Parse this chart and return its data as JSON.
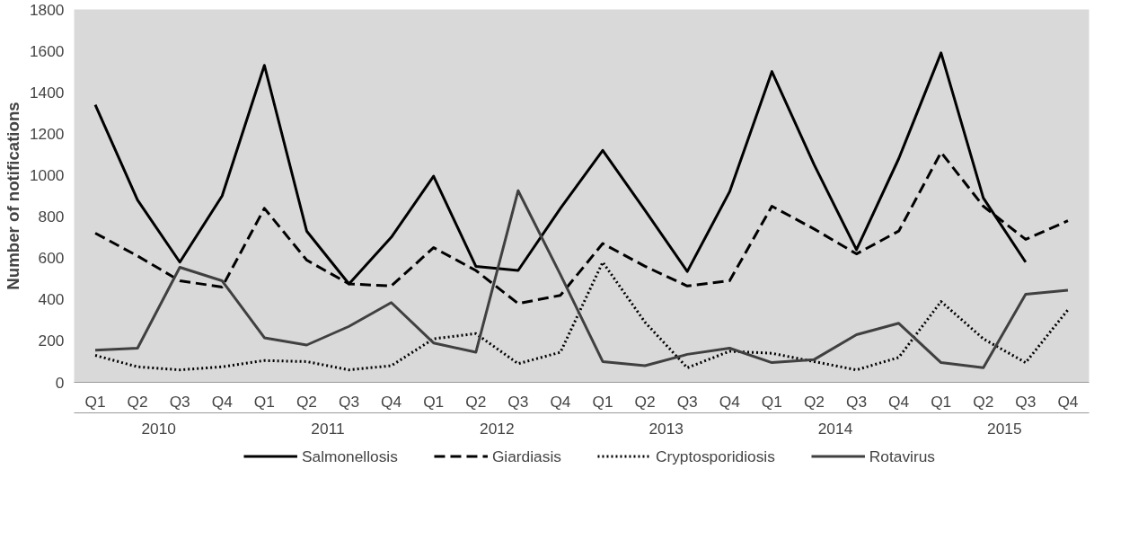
{
  "chart_data": {
    "type": "line",
    "ylabel": "Number of notifications",
    "categories": [
      "Q1",
      "Q2",
      "Q3",
      "Q4",
      "Q1",
      "Q2",
      "Q3",
      "Q4",
      "Q1",
      "Q2",
      "Q3",
      "Q4",
      "Q1",
      "Q2",
      "Q3",
      "Q4",
      "Q1",
      "Q2",
      "Q3",
      "Q4",
      "Q1",
      "Q2",
      "Q3",
      "Q4"
    ],
    "annotations": [
      "2010",
      "2011",
      "2012",
      "2013",
      "2014",
      "2015"
    ],
    "series": [
      {
        "name": "Salmonellosis",
        "color": "#000000",
        "line_style": "solid",
        "values": [
          1340,
          880,
          580,
          900,
          1530,
          730,
          475,
          700,
          995,
          560,
          540,
          840,
          1120,
          830,
          535,
          920,
          1500,
          1050,
          640,
          1080,
          1590,
          890,
          580,
          null
        ]
      },
      {
        "name": "Giardiasis",
        "color": "#000000",
        "line_style": "dashed",
        "values": [
          720,
          610,
          490,
          460,
          840,
          590,
          475,
          465,
          650,
          540,
          380,
          420,
          670,
          560,
          465,
          490,
          850,
          740,
          620,
          730,
          1110,
          850,
          690,
          780
        ]
      },
      {
        "name": "Cryptosporidiosis",
        "color": "#000000",
        "line_style": "dotted",
        "values": [
          130,
          75,
          60,
          75,
          105,
          100,
          60,
          80,
          210,
          235,
          90,
          145,
          580,
          290,
          70,
          150,
          140,
          100,
          60,
          120,
          390,
          210,
          95,
          350
        ]
      },
      {
        "name": "Rotavirus",
        "color": "#404040",
        "line_style": "solid",
        "values": [
          155,
          165,
          555,
          490,
          215,
          180,
          270,
          385,
          190,
          145,
          925,
          520,
          100,
          80,
          135,
          165,
          95,
          110,
          230,
          285,
          95,
          70,
          425,
          445
        ]
      }
    ],
    "ylim": [
      0,
      1800
    ],
    "yticks": [
      0,
      200,
      400,
      600,
      800,
      1000,
      1200,
      1400,
      1600,
      1800
    ],
    "grid": false,
    "legend": "bottom",
    "marker": "none"
  }
}
